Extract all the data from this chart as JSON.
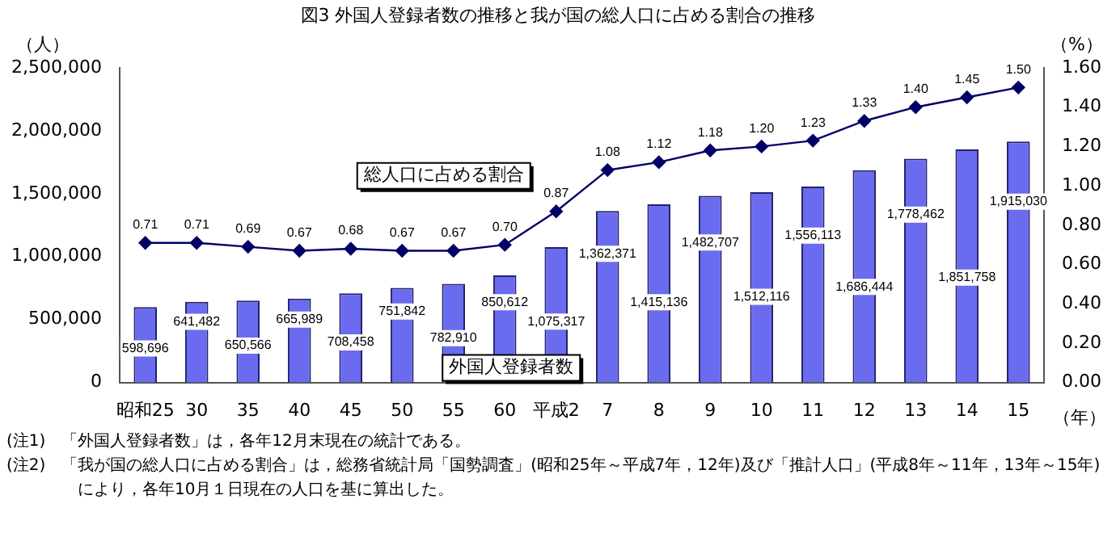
{
  "chart_data": {
    "type": "bar",
    "title": "図3 外国人登録者数の推移と我が国の総人口に占める割合の推移",
    "ylabel": "（人）",
    "y2label": "（%）",
    "xlabel": "（年）",
    "categories": [
      "昭和25",
      "30",
      "35",
      "40",
      "45",
      "50",
      "55",
      "60",
      "平成2",
      "7",
      "8",
      "9",
      "10",
      "11",
      "12",
      "13",
      "14",
      "15"
    ],
    "series": [
      {
        "name": "外国人登録者数",
        "color": "#6b6bef",
        "values": [
          598696,
          641482,
          650566,
          665989,
          708458,
          751842,
          782910,
          850612,
          1075317,
          1362371,
          1415136,
          1482707,
          1512116,
          1556113,
          1686444,
          1778462,
          1851758,
          1915030
        ],
        "value_labels": [
          "598,696",
          "641,482",
          "650,566",
          "665,989",
          "708,458",
          "751,842",
          "782,910",
          "850,612",
          "1,075,317",
          "1,362,371",
          "1,415,136",
          "1,482,707",
          "1,512,116",
          "1,556,113",
          "1,686,444",
          "1,778,462",
          "1,851,758",
          "1,915,030"
        ]
      },
      {
        "name": "総人口に占める割合",
        "type": "line",
        "axis": "y2",
        "color": "#000066",
        "values": [
          0.71,
          0.71,
          0.69,
          0.67,
          0.68,
          0.67,
          0.67,
          0.7,
          0.87,
          1.08,
          1.12,
          1.18,
          1.2,
          1.23,
          1.33,
          1.4,
          1.45,
          1.5
        ],
        "value_labels": [
          "0.71",
          "0.71",
          "0.69",
          "0.67",
          "0.68",
          "0.67",
          "0.67",
          "0.70",
          "0.87",
          "1.08",
          "1.12",
          "1.18",
          "1.20",
          "1.23",
          "1.33",
          "1.40",
          "1.45",
          "1.50"
        ]
      }
    ],
    "ylim": [
      0,
      2500000
    ],
    "yticks": [
      {
        "value": 0,
        "label": "0"
      },
      {
        "value": 500000,
        "label": "500,000"
      },
      {
        "value": 1000000,
        "label": "1,000,000"
      },
      {
        "value": 1500000,
        "label": "1,500,000"
      },
      {
        "value": 2000000,
        "label": "2,000,000"
      },
      {
        "value": 2500000,
        "label": "2,500,000"
      }
    ],
    "y2lim": [
      0,
      1.6
    ],
    "y2ticks": [
      {
        "value": 0,
        "label": "0.00"
      },
      {
        "value": 0.2,
        "label": "0.20"
      },
      {
        "value": 0.4,
        "label": "0.40"
      },
      {
        "value": 0.6,
        "label": "0.60"
      },
      {
        "value": 0.8,
        "label": "0.80"
      },
      {
        "value": 1.0,
        "label": "1.00"
      },
      {
        "value": 1.2,
        "label": "1.20"
      },
      {
        "value": 1.4,
        "label": "1.40"
      },
      {
        "value": 1.6,
        "label": "1.60"
      }
    ],
    "grid": false,
    "legend": false,
    "marker": "diamond",
    "annotations": [
      "(注1)　「外国人登録者数」は，各年12月末現在の統計である。",
      "(注2)　「我が国の総人口に占める割合」は，総務省統計局「国勢調査」(昭和25年～平成7年，12年)及び「推計人口」(平成8年～11年，13年～15年)により，各年10月１日現在の人口を基に算出した。"
    ]
  }
}
